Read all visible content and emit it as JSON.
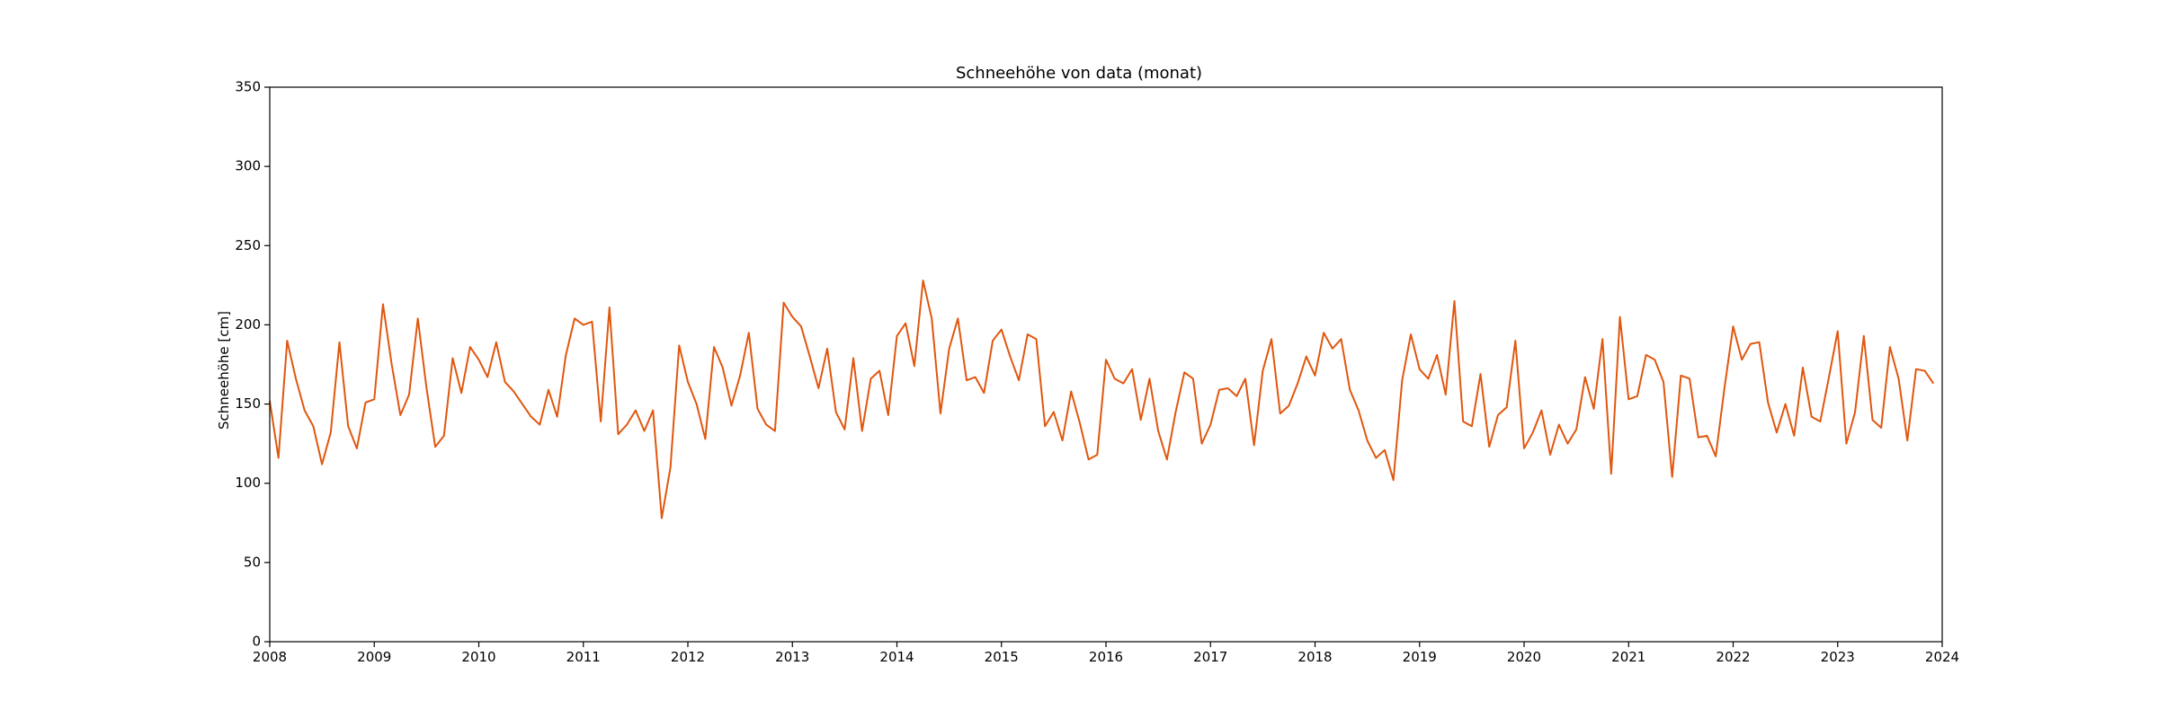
{
  "chart_data": {
    "type": "line",
    "title": "Schneehöhe von data (monat)",
    "xlabel": "",
    "ylabel": "Schneehöhe [cm]",
    "xlim": [
      "2008-01",
      "2024-01"
    ],
    "ylim": [
      0,
      350
    ],
    "grid": false,
    "legend": "none",
    "x_ticks": [
      "2008",
      "2009",
      "2010",
      "2011",
      "2012",
      "2013",
      "2014",
      "2015",
      "2016",
      "2017",
      "2018",
      "2019",
      "2020",
      "2021",
      "2022",
      "2023",
      "2024"
    ],
    "y_ticks": [
      "0",
      "50",
      "100",
      "150",
      "200",
      "250",
      "300",
      "350"
    ],
    "colors": {
      "series": "#e0570f",
      "axis": "#000000"
    },
    "series": [
      {
        "x": [
          "2008-01",
          "2008-02",
          "2008-03",
          "2008-04",
          "2008-05",
          "2008-06",
          "2008-07",
          "2008-08",
          "2008-09",
          "2008-10",
          "2008-11",
          "2008-12",
          "2009-01",
          "2009-02",
          "2009-03",
          "2009-04",
          "2009-05",
          "2009-06",
          "2009-07",
          "2009-08",
          "2009-09",
          "2009-10",
          "2009-11",
          "2009-12",
          "2010-01",
          "2010-02",
          "2010-03",
          "2010-04",
          "2010-05",
          "2010-06",
          "2010-07",
          "2010-08",
          "2010-09",
          "2010-10",
          "2010-11",
          "2010-12",
          "2011-01",
          "2011-02",
          "2011-03",
          "2011-04",
          "2011-05",
          "2011-06",
          "2011-07",
          "2011-08",
          "2011-09",
          "2011-10",
          "2011-11",
          "2011-12",
          "2012-01",
          "2012-02",
          "2012-03",
          "2012-04",
          "2012-05",
          "2012-06",
          "2012-07",
          "2012-08",
          "2012-09",
          "2012-10",
          "2012-11",
          "2012-12",
          "2013-01",
          "2013-02",
          "2013-03",
          "2013-04",
          "2013-05",
          "2013-06",
          "2013-07",
          "2013-08",
          "2013-09",
          "2013-10",
          "2013-11",
          "2013-12",
          "2014-01",
          "2014-02",
          "2014-03",
          "2014-04",
          "2014-05",
          "2014-06",
          "2014-07",
          "2014-08",
          "2014-09",
          "2014-10",
          "2014-11",
          "2014-12",
          "2015-01",
          "2015-02",
          "2015-03",
          "2015-04",
          "2015-05",
          "2015-06",
          "2015-07",
          "2015-08",
          "2015-09",
          "2015-10",
          "2015-11",
          "2015-12",
          "2016-01",
          "2016-02",
          "2016-03",
          "2016-04",
          "2016-05",
          "2016-06",
          "2016-07",
          "2016-08",
          "2016-09",
          "2016-10",
          "2016-11",
          "2016-12",
          "2017-01",
          "2017-02",
          "2017-03",
          "2017-04",
          "2017-05",
          "2017-06",
          "2017-07",
          "2017-08",
          "2017-09",
          "2017-10",
          "2017-11",
          "2017-12",
          "2018-01",
          "2018-02",
          "2018-03",
          "2018-04",
          "2018-05",
          "2018-06",
          "2018-07",
          "2018-08",
          "2018-09",
          "2018-10",
          "2018-11",
          "2018-12",
          "2019-01",
          "2019-02",
          "2019-03",
          "2019-04",
          "2019-05",
          "2019-06",
          "2019-07",
          "2019-08",
          "2019-09",
          "2019-10",
          "2019-11",
          "2019-12",
          "2020-01",
          "2020-02",
          "2020-03",
          "2020-04",
          "2020-05",
          "2020-06",
          "2020-07",
          "2020-08",
          "2020-09",
          "2020-10",
          "2020-11",
          "2020-12",
          "2021-01",
          "2021-02",
          "2021-03",
          "2021-04",
          "2021-05",
          "2021-06",
          "2021-07",
          "2021-08",
          "2021-09",
          "2021-10",
          "2021-11",
          "2021-12",
          "2022-01",
          "2022-02",
          "2022-03",
          "2022-04",
          "2022-05",
          "2022-06",
          "2022-07",
          "2022-08",
          "2022-09",
          "2022-10",
          "2022-11",
          "2022-12",
          "2023-01",
          "2023-02",
          "2023-03",
          "2023-04",
          "2023-05",
          "2023-06",
          "2023-07",
          "2023-08",
          "2023-09",
          "2023-10",
          "2023-11",
          "2023-12"
        ],
        "y": [
          152,
          116,
          190,
          166,
          146,
          136,
          112,
          132,
          189,
          136,
          122,
          151,
          153,
          213,
          175,
          143,
          156,
          204,
          160,
          123,
          130,
          179,
          157,
          186,
          178,
          167,
          189,
          164,
          158,
          150,
          142,
          137,
          159,
          142,
          181,
          204,
          200,
          202,
          139,
          211,
          131,
          137,
          146,
          133,
          146,
          78,
          110,
          187,
          164,
          150,
          128,
          186,
          173,
          149,
          168,
          195,
          147,
          137,
          133,
          214,
          205,
          199,
          180,
          160,
          185,
          145,
          134,
          179,
          133,
          166,
          171,
          143,
          193,
          201,
          174,
          228,
          204,
          144,
          185,
          204,
          165,
          167,
          157,
          190,
          197,
          180,
          165,
          194,
          191,
          136,
          145,
          127,
          158,
          138,
          115,
          118,
          178,
          166,
          163,
          172,
          140,
          166,
          133,
          115,
          145,
          170,
          166,
          125,
          137,
          159,
          160,
          155,
          166,
          124,
          171,
          191,
          144,
          149,
          163,
          180,
          168,
          195,
          185,
          191,
          159,
          146,
          127,
          116,
          121,
          102,
          165,
          194,
          172,
          166,
          181,
          156,
          215,
          139,
          136,
          169,
          123,
          143,
          148,
          190,
          122,
          132,
          146,
          118,
          137,
          125,
          134,
          167,
          147,
          191,
          106,
          205,
          153,
          155,
          181,
          178,
          164,
          104,
          168,
          166,
          129,
          130,
          117,
          160,
          199,
          178,
          188,
          189,
          151,
          132,
          150,
          130,
          173,
          142,
          139,
          167,
          196,
          125,
          145,
          193,
          140,
          135,
          186,
          166,
          127,
          172,
          171,
          163
        ]
      }
    ]
  }
}
